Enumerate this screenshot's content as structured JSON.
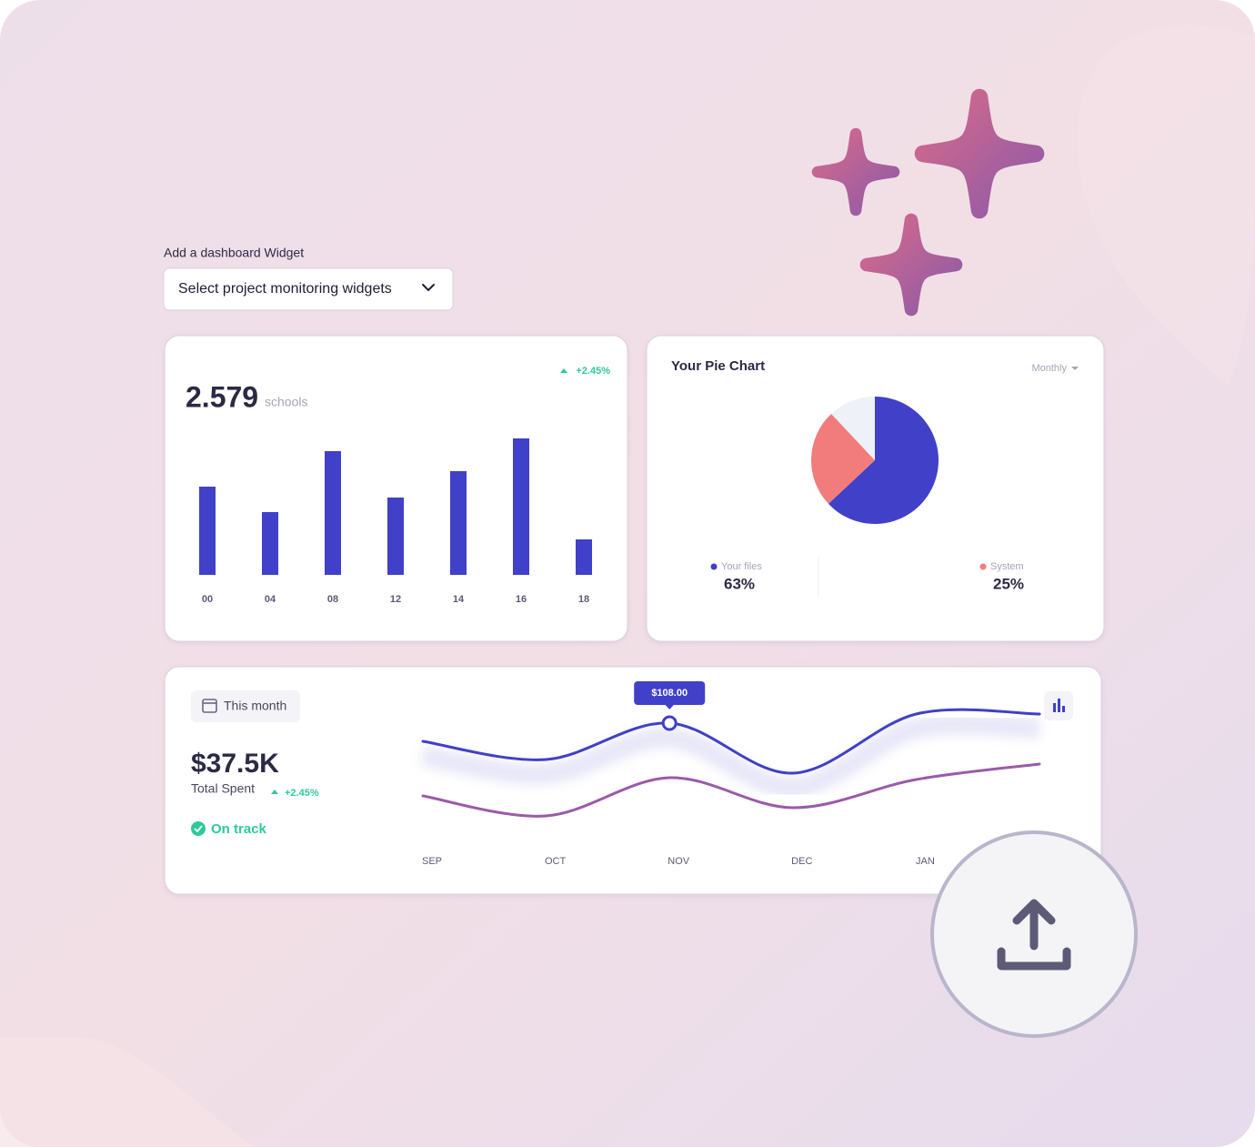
{
  "widget_picker": {
    "label": "Add a dashboard Widget",
    "placeholder": "Select project monitoring widgets"
  },
  "bar_card": {
    "total": "2.579",
    "unit": "schools",
    "change": "+2.45%"
  },
  "pie_card": {
    "period": "Monthly"
  },
  "spend_card": {
    "period": "This month",
    "amount": "$37.5K",
    "caption": "Total Spent",
    "change": "+2.45%",
    "status": "On track"
  },
  "chart_data": [
    {
      "type": "bar",
      "categories": [
        "00",
        "04",
        "08",
        "12",
        "14",
        "16",
        "18"
      ],
      "values": [
        97,
        69,
        136,
        85,
        114,
        150,
        39
      ],
      "color": "#4040c8",
      "ylim": [
        0,
        150
      ]
    },
    {
      "type": "pie",
      "title": "Your Pie Chart",
      "categories": [
        "Your files",
        "System",
        null
      ],
      "values": [
        63,
        25,
        12
      ],
      "value_labels": [
        "63%",
        "25%",
        null
      ],
      "colors": [
        "#4040c8",
        "#f27b7b",
        "#eef1f7"
      ]
    },
    {
      "type": "line",
      "categories": [
        "SEP",
        "OCT",
        "NOV",
        "DEC",
        "JAN",
        null
      ],
      "ylim": [
        -7,
        133
      ],
      "series": [
        {
          "color": "#4040c8",
          "values": [
            88,
            68,
            108,
            53,
            118,
            118
          ],
          "value_labels": [
            null,
            null,
            "$108.00",
            null,
            null,
            null
          ]
        },
        {
          "color": "#9b5aa8",
          "values": [
            28,
            6,
            48,
            15,
            46,
            63
          ]
        }
      ]
    }
  ]
}
